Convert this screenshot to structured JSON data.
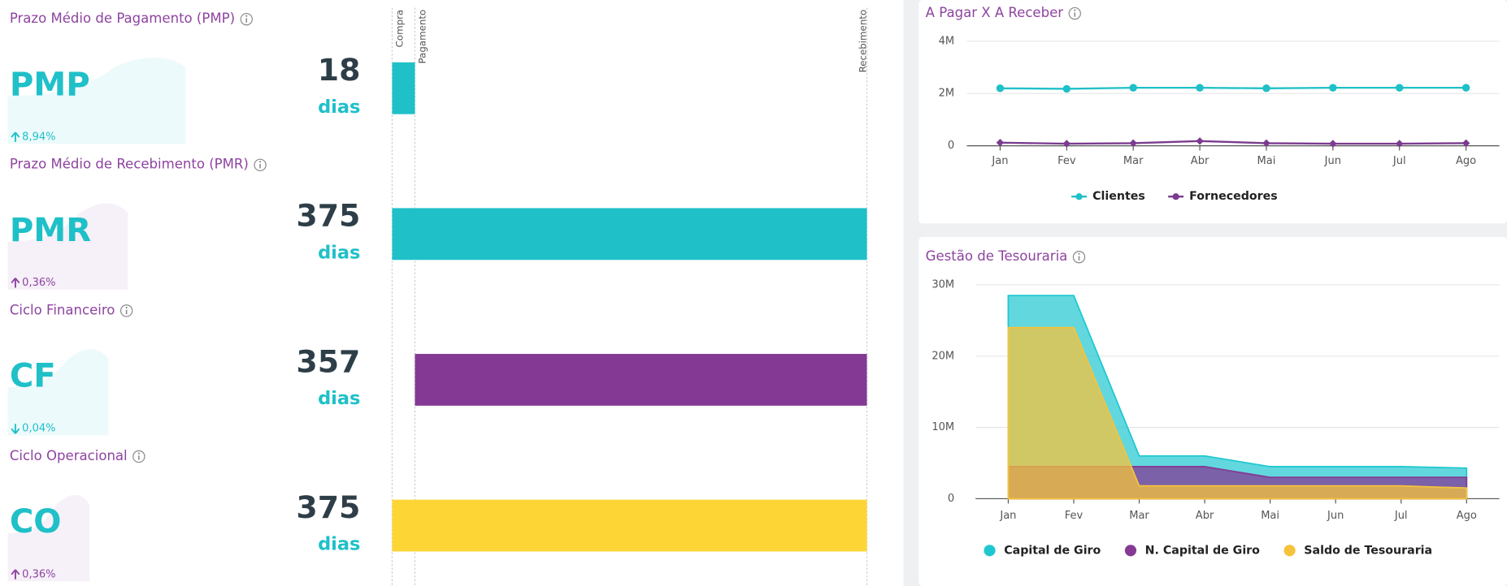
{
  "kpis": [
    {
      "title": "Prazo Médio de Pagamento (PMP)",
      "abbr": "PMP",
      "value": 18,
      "unit": "dias",
      "change": "8,94%",
      "direction": "up",
      "color": "#1fc0c8",
      "accent": "#1fc0c8"
    },
    {
      "title": "Prazo Médio de Recebimento (PMR)",
      "abbr": "PMR",
      "value": 375,
      "unit": "dias",
      "change": "0,36%",
      "direction": "up",
      "color": "#1fc0c8",
      "accent": "#8e44a0"
    },
    {
      "title": "Ciclo Financeiro",
      "abbr": "CF",
      "value": 357,
      "unit": "dias",
      "change": "0,04%",
      "direction": "down",
      "color": "#843a94",
      "accent": "#1fc0c8"
    },
    {
      "title": "Ciclo Operacional",
      "abbr": "CO",
      "value": 375,
      "unit": "dias",
      "change": "0,36%",
      "direction": "up",
      "color": "#fdd535",
      "accent": "#8e44a0"
    }
  ],
  "timeline": [
    "Compra",
    "Pagamento",
    "Recebimento"
  ],
  "charts": [
    {
      "type": "line",
      "title": "A Pagar X A Receber",
      "categories": [
        "Jan",
        "Fev",
        "Mar",
        "Abr",
        "Mai",
        "Jun",
        "Jul",
        "Ago"
      ],
      "series": [
        {
          "name": "Clientes",
          "color": "#1fc0c8",
          "values": [
            2200000,
            2180000,
            2220000,
            2220000,
            2200000,
            2220000,
            2220000,
            2220000
          ]
        },
        {
          "name": "Fornecedores",
          "color": "#7b3b8f",
          "values": [
            120000,
            80000,
            100000,
            180000,
            100000,
            80000,
            80000,
            100000
          ]
        }
      ],
      "ylim": [
        0,
        4000000
      ],
      "yticks": [
        0,
        {
          "value": 2000000,
          "label": "2M"
        },
        {
          "value": 4000000,
          "label": "4M"
        }
      ],
      "grid": true,
      "legend": "bottom"
    },
    {
      "type": "area",
      "title": "Gestão de Tesouraria",
      "categories": [
        "Jan",
        "Fev",
        "Mar",
        "Abr",
        "Mai",
        "Jun",
        "Jul",
        "Ago"
      ],
      "series": [
        {
          "name": "Capital de Giro",
          "color": "#1fc8d0",
          "values": [
            28500000,
            28500000,
            6000000,
            6000000,
            4500000,
            4500000,
            4500000,
            4300000
          ]
        },
        {
          "name": "N. Capital de Giro",
          "color": "#843a94",
          "values": [
            4500000,
            4500000,
            4500000,
            4500000,
            3000000,
            3000000,
            3000000,
            3000000
          ]
        },
        {
          "name": "Saldo de Tesouraria",
          "color": "#f5c33b",
          "values": [
            24000000,
            24000000,
            1800000,
            1800000,
            1800000,
            1800000,
            1800000,
            1500000
          ]
        }
      ],
      "ylim": [
        0,
        30000000
      ],
      "yticks": [
        0,
        {
          "value": 10000000,
          "label": "10M"
        },
        {
          "value": 20000000,
          "label": "20M"
        },
        {
          "value": 30000000,
          "label": "30M"
        }
      ],
      "grid": true,
      "legend": "bottom"
    }
  ]
}
